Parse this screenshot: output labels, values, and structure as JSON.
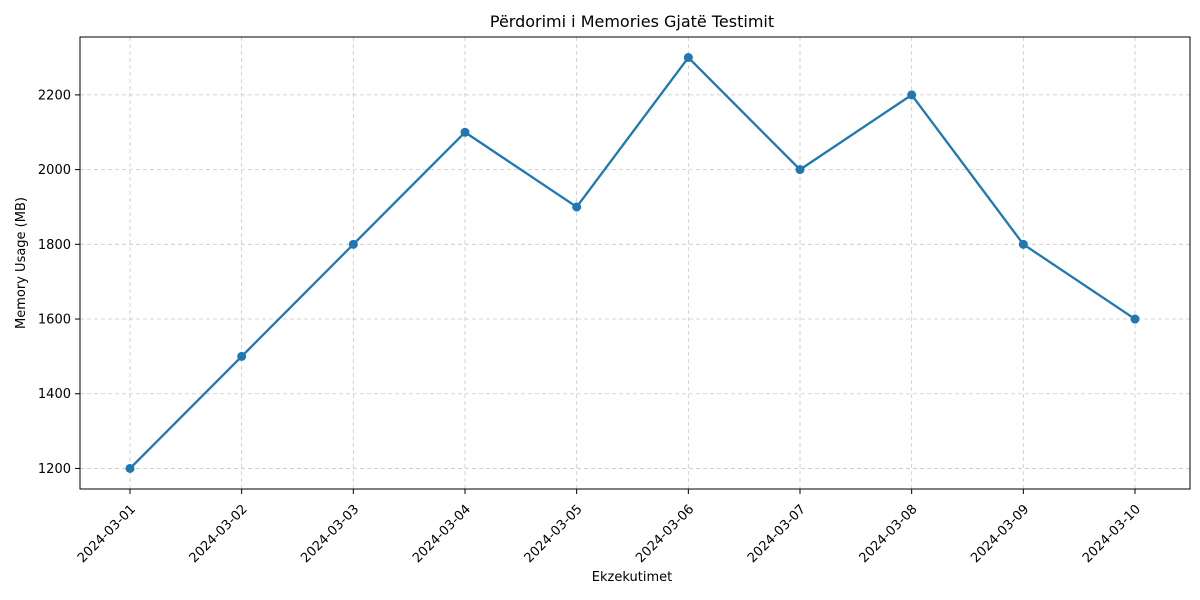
{
  "chart_data": {
    "type": "line",
    "title": "Përdorimi i Memories Gjatë Testimit",
    "xlabel": "Ekzekutimet",
    "ylabel": "Memory Usage (MB)",
    "x": [
      "2024-03-01",
      "2024-03-02",
      "2024-03-03",
      "2024-03-04",
      "2024-03-05",
      "2024-03-06",
      "2024-03-07",
      "2024-03-08",
      "2024-03-09",
      "2024-03-10"
    ],
    "series": [
      {
        "values": [
          1200,
          1500,
          1800,
          2100,
          1900,
          2300,
          2000,
          2200,
          1800,
          1600
        ],
        "color": "#1f77b4",
        "marker": "circle"
      }
    ],
    "ylim": [
      1145,
      2355
    ],
    "yticks": [
      1200,
      1400,
      1600,
      1800,
      2000,
      2200
    ],
    "grid": true,
    "x_tick_rotation_deg": 45
  }
}
